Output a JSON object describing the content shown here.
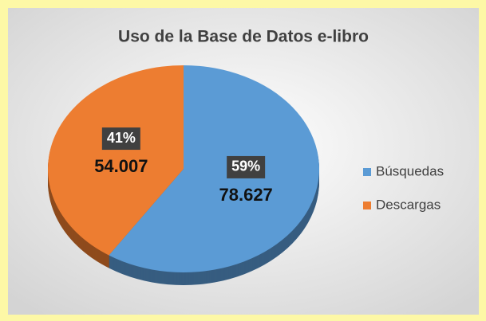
{
  "chart_data": {
    "type": "pie",
    "title": "Uso de la Base de Datos e-libro",
    "categories": [
      "Búsquedas",
      "Descargas"
    ],
    "values": [
      78627,
      54007
    ],
    "value_labels": [
      "78.627",
      "54.007"
    ],
    "percent_labels": [
      "59%",
      "41%"
    ],
    "colors": [
      "#5b9bd5",
      "#ed7d31"
    ],
    "legend": "right"
  }
}
